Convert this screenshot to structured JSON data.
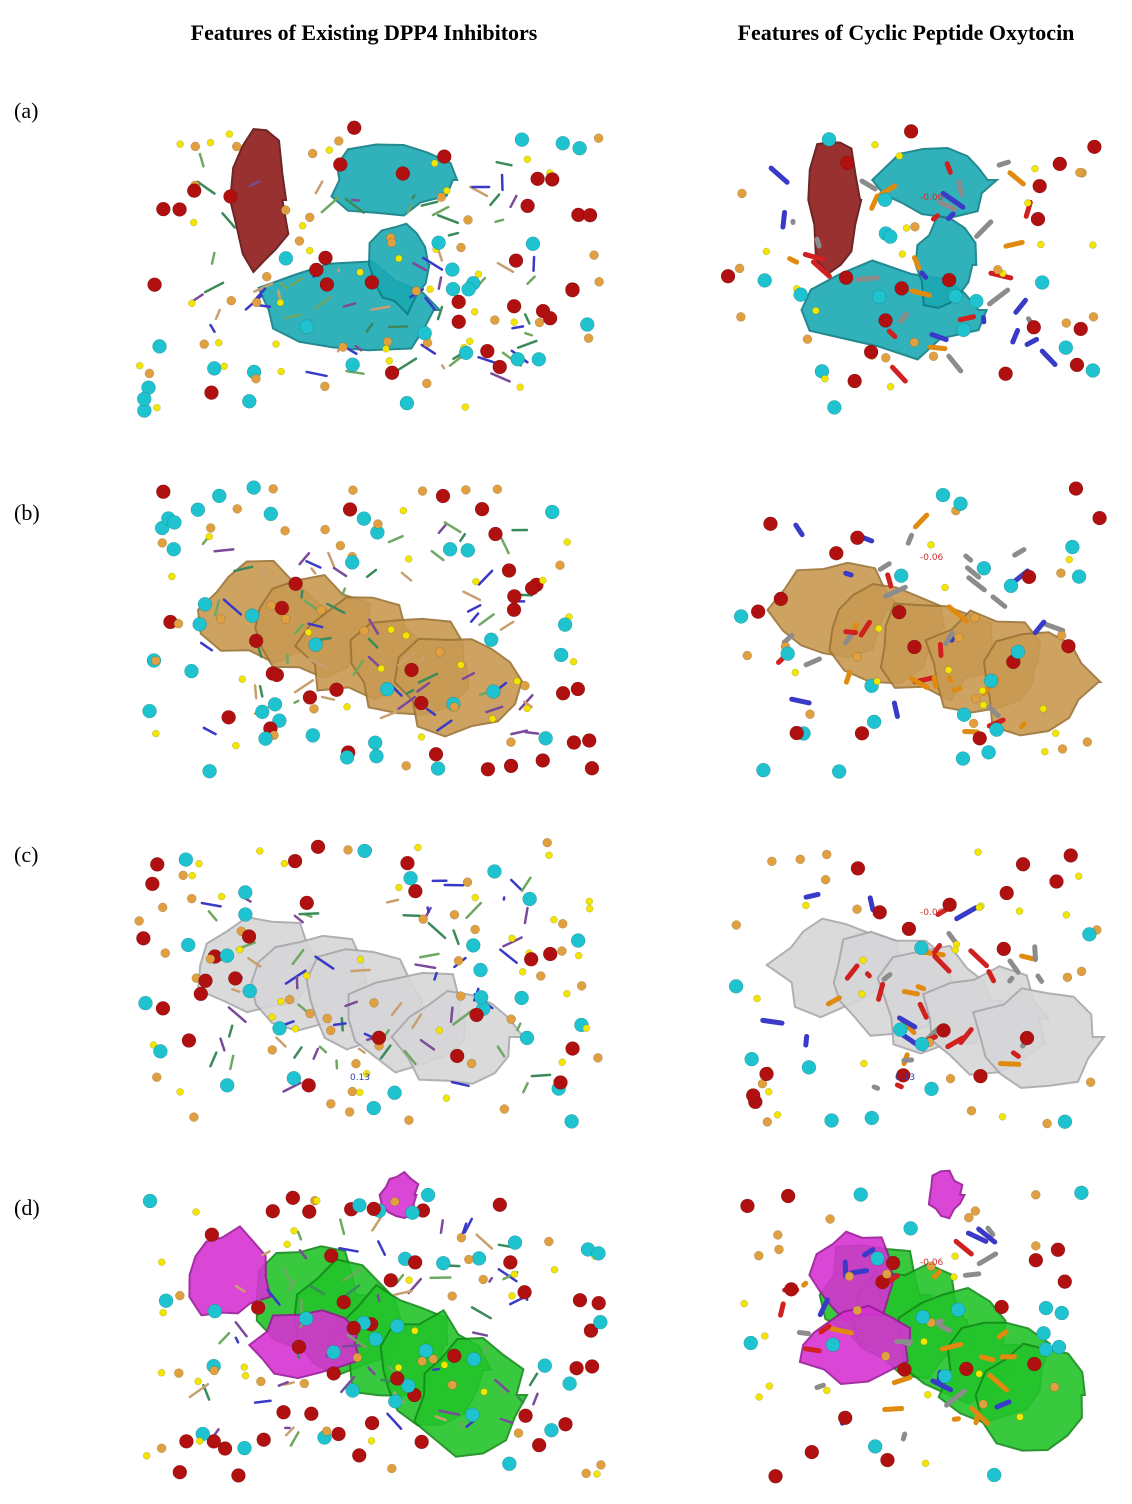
{
  "headers": [
    "Features of Existing DPP4 Inhibitors",
    "Features of Cyclic Peptide Oxytocin"
  ],
  "rows": [
    {
      "label": "(a)",
      "annotations": [
        [],
        [
          "-0.06"
        ]
      ]
    },
    {
      "label": "(b)",
      "annotations": [
        [],
        [
          "-0.06"
        ]
      ]
    },
    {
      "label": "(c)",
      "annotations": [
        [
          "0.13"
        ],
        [
          "-0.06",
          "0.13"
        ]
      ]
    },
    {
      "label": "(d)",
      "annotations": [
        [],
        [
          "-0.06"
        ]
      ]
    }
  ]
}
